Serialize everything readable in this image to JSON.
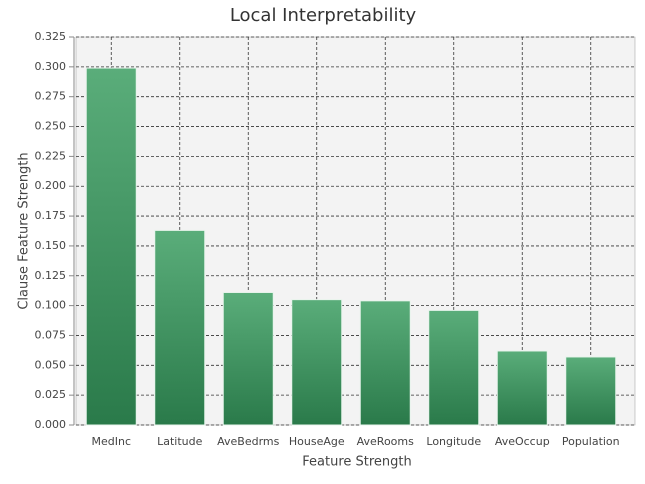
{
  "chart_data": {
    "type": "bar",
    "title": "Local Interpretability",
    "x_label": "Feature Strength",
    "y_label": "Clause Feature Strength",
    "categories": [
      "MedInc",
      "Latitude",
      "AveBedrms",
      "HouseAge",
      "AveRooms",
      "Longitude",
      "AveOccup",
      "Population"
    ],
    "values": [
      0.299,
      0.163,
      0.111,
      0.105,
      0.104,
      0.096,
      0.062,
      0.057
    ],
    "color": "#3a9660",
    "ylim": [
      0,
      0.325
    ],
    "yticks": [
      {
        "value": 0,
        "label": "0.000"
      },
      {
        "value": 0.025,
        "label": "0.025"
      },
      {
        "value": 0.05,
        "label": "0.050"
      },
      {
        "value": 0.075,
        "label": "0.075"
      },
      {
        "value": 0.1,
        "label": "0.100"
      },
      {
        "value": 0.125,
        "label": "0.125"
      },
      {
        "value": 0.15,
        "label": "0.150"
      },
      {
        "value": 0.175,
        "label": "0.175"
      },
      {
        "value": 0.2,
        "label": "0.200"
      },
      {
        "value": 0.225,
        "label": "0.225"
      },
      {
        "value": 0.25,
        "label": "0.250"
      },
      {
        "value": 0.275,
        "label": "0.275"
      },
      {
        "value": 0.3,
        "label": "0.300"
      },
      {
        "value": 0.325,
        "label": "0.325"
      }
    ],
    "grid": true
  }
}
